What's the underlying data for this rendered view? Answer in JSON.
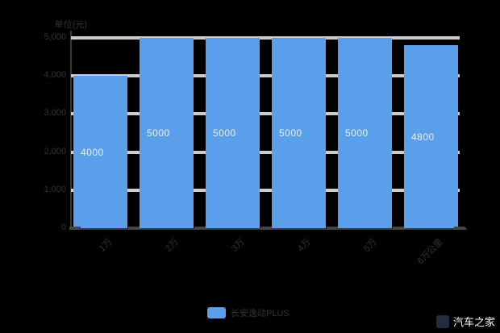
{
  "background": "#000000",
  "chart_data": {
    "type": "bar",
    "categories": [
      "1万",
      "2万",
      "3万",
      "4万",
      "5万",
      "6万公里"
    ],
    "values": [
      4000,
      5000,
      5000,
      5000,
      5000,
      4800
    ],
    "bar_labels": [
      "4000",
      "5000",
      "5000",
      "5000",
      "5000",
      "4800"
    ],
    "title": "",
    "xlabel": "",
    "ylabel": "单位(元)",
    "ylim": [
      0,
      5000
    ],
    "ytick_values": [
      0,
      1000,
      2000,
      3000,
      4000,
      5000
    ],
    "ytick_labels": [
      "0",
      "1,000",
      "2,000",
      "3,000",
      "4,000",
      "5,000"
    ],
    "grid": true,
    "legend_position": "bottom"
  },
  "legend": {
    "series_label": "长安逸动PLUS",
    "swatch_color": "#5A9FEA"
  },
  "colors": {
    "bar": "#5A9FEA",
    "gridline": "#CCCCCC",
    "axis_line": "#3A3A3A",
    "tick_text": "#333333",
    "value_label": "#E9EFF6",
    "watermark_text": "#FFFFFF"
  },
  "watermark": {
    "text": "汽车之家"
  }
}
